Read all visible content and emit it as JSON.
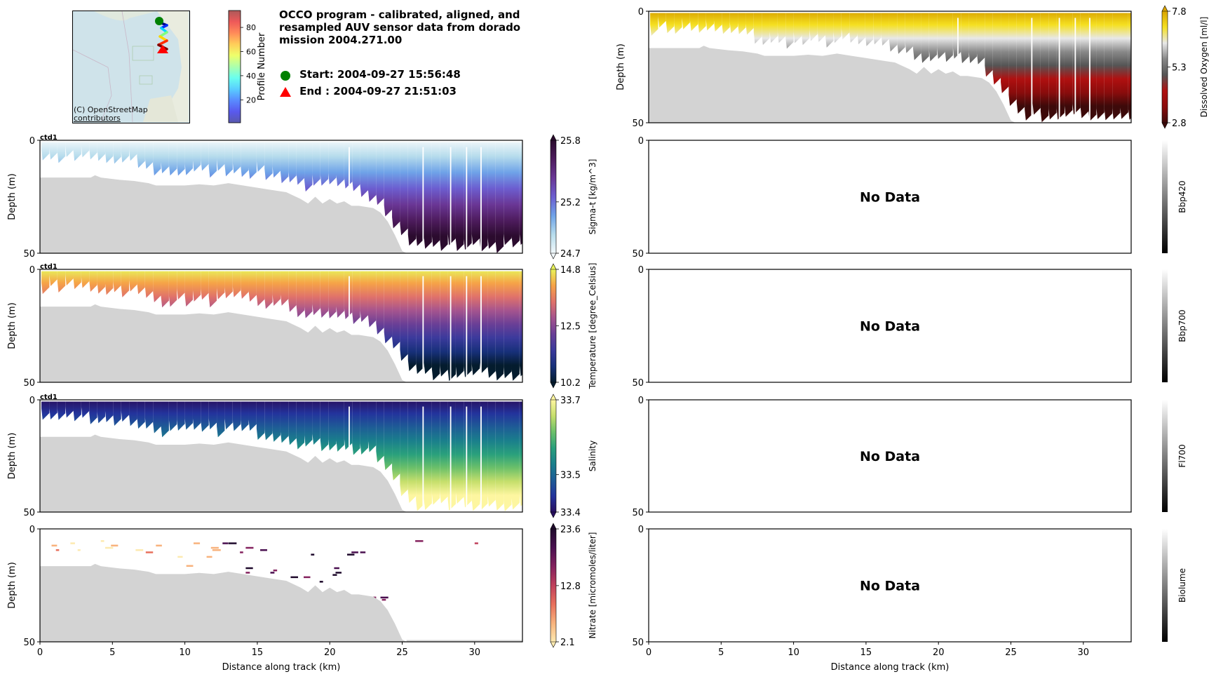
{
  "header": {
    "title_lines": [
      "OCCO program - calibrated, aligned, and",
      "resampled AUV sensor data from dorado",
      "mission 2004.271.00"
    ],
    "start_label": "Start: 2004-09-27 15:56:48",
    "end_label": "End  : 2004-09-27 21:51:03",
    "start_marker_color": "#008000",
    "end_marker_color": "#ff0000"
  },
  "map": {
    "attribution_lines": [
      "(C) OpenStreetMap",
      "contributors"
    ],
    "track_colormap": "jet",
    "profile_colorbar": {
      "label": "Profile Number",
      "range": [
        1,
        94
      ],
      "ticks": [
        "20",
        "40",
        "60",
        "80"
      ],
      "tick_values": [
        20,
        40,
        60,
        80
      ]
    }
  },
  "chart_data": [
    {
      "type": "heatmap",
      "id": "oxygen",
      "column": "right",
      "row": 0,
      "title": "",
      "xlabel": "",
      "ylabel": "Depth (m)",
      "xlim": [
        0,
        33.3
      ],
      "ylim": [
        50,
        0
      ],
      "yticks": [
        "0",
        "50"
      ],
      "xticks": [],
      "has_data": true,
      "annotation": "",
      "colorbar": {
        "label": "Dissolved Oxygen [ml/l]",
        "min": 2.8,
        "max": 7.8,
        "ticks": [
          "2.8",
          "5.3",
          "7.8"
        ],
        "extend": "both",
        "stops": [
          "#3d0a0a",
          "#8a0c0c",
          "#b01010",
          "#555555",
          "#888888",
          "#e8e8e8",
          "#f5e020",
          "#d9a400"
        ]
      }
    },
    {
      "type": "heatmap",
      "id": "sigmat",
      "column": "left",
      "row": 1,
      "title": "",
      "corner_label": "ctd1",
      "xlabel": "",
      "ylabel": "Depth (m)",
      "xlim": [
        0,
        33.3
      ],
      "ylim": [
        50,
        0
      ],
      "yticks": [
        "0",
        "50"
      ],
      "xticks": [],
      "has_data": true,
      "annotation": "",
      "colorbar": {
        "label": "Sigma-t [kg/m^3]",
        "min": 24.7,
        "max": 25.8,
        "ticks": [
          "24.7",
          "25.2",
          "25.8"
        ],
        "extend": "both",
        "stops": [
          "#f2f8fb",
          "#b6dcec",
          "#6fa3e8",
          "#6c5ed0",
          "#6a3796",
          "#4e1c5e",
          "#2b0b2e"
        ]
      }
    },
    {
      "type": "heatmap",
      "id": "temperature",
      "column": "left",
      "row": 2,
      "title": "",
      "corner_label": "ctd1",
      "xlabel": "",
      "ylabel": "Depth (m)",
      "xlim": [
        0,
        33.3
      ],
      "ylim": [
        50,
        0
      ],
      "yticks": [
        "0",
        "50"
      ],
      "xticks": [],
      "has_data": true,
      "annotation": "",
      "colorbar": {
        "label": "Temperature [degree_Celsius]",
        "min": 10.2,
        "max": 14.8,
        "ticks": [
          "10.2",
          "12.5",
          "14.8"
        ],
        "extend": "both",
        "stops": [
          "#041c2e",
          "#17307a",
          "#3b3a9c",
          "#6a3f96",
          "#a5548e",
          "#e0726a",
          "#f6a347",
          "#e8f25a"
        ]
      }
    },
    {
      "type": "heatmap",
      "id": "salinity",
      "column": "left",
      "row": 3,
      "title": "",
      "corner_label": "ctd1",
      "xlabel": "",
      "ylabel": "Depth (m)",
      "xlim": [
        0,
        33.3
      ],
      "ylim": [
        50,
        0
      ],
      "yticks": [
        "0",
        "50"
      ],
      "xticks": [],
      "has_data": true,
      "annotation": "",
      "colorbar": {
        "label": "Salinity",
        "min": 33.4,
        "max": 33.7,
        "ticks": [
          "33.4",
          "33.5",
          "33.7"
        ],
        "extend": "both",
        "stops": [
          "#281060",
          "#23339c",
          "#1e5c96",
          "#1a7f8c",
          "#2aa07c",
          "#6cc06a",
          "#c6df6c",
          "#fdf6a0"
        ]
      }
    },
    {
      "type": "heatmap",
      "id": "nitrate",
      "column": "left",
      "row": 4,
      "title": "",
      "xlabel": "Distance along track (km)",
      "ylabel": "Depth (m)",
      "xlim": [
        0,
        33.3
      ],
      "ylim": [
        50,
        0
      ],
      "yticks": [
        "0",
        "50"
      ],
      "xticks": [
        "0",
        "5",
        "10",
        "15",
        "20",
        "25",
        "30"
      ],
      "has_data": true,
      "annotation": "",
      "colorbar": {
        "label": "Nitrate [micromoles/liter]",
        "min": 2.1,
        "max": 23.6,
        "ticks": [
          "2.1",
          "12.8",
          "23.6"
        ],
        "extend": "both",
        "stops": [
          "#fdeab0",
          "#f8b27c",
          "#e8705c",
          "#c0405c",
          "#84225e",
          "#4a1050",
          "#1f0a2c"
        ]
      }
    },
    {
      "type": "heatmap",
      "id": "bbp420",
      "column": "right",
      "row": 1,
      "xlabel": "",
      "ylabel": "",
      "xlim": [
        0,
        33.3
      ],
      "ylim": [
        50,
        0
      ],
      "yticks": [
        "0",
        "50"
      ],
      "xticks": [],
      "has_data": false,
      "annotation": "No Data",
      "colorbar": {
        "label": "Bbp420",
        "ticks": [],
        "extend": "neither",
        "stops": [
          "#000000",
          "#ffffff"
        ]
      }
    },
    {
      "type": "heatmap",
      "id": "bbp700",
      "column": "right",
      "row": 2,
      "xlabel": "",
      "ylabel": "",
      "xlim": [
        0,
        33.3
      ],
      "ylim": [
        50,
        0
      ],
      "yticks": [
        "0",
        "50"
      ],
      "xticks": [],
      "has_data": false,
      "annotation": "No Data",
      "colorbar": {
        "label": "Bbp700",
        "ticks": [],
        "extend": "neither",
        "stops": [
          "#000000",
          "#ffffff"
        ]
      }
    },
    {
      "type": "heatmap",
      "id": "fl700",
      "column": "right",
      "row": 3,
      "xlabel": "",
      "ylabel": "",
      "xlim": [
        0,
        33.3
      ],
      "ylim": [
        50,
        0
      ],
      "yticks": [
        "0",
        "50"
      ],
      "xticks": [],
      "has_data": false,
      "annotation": "No Data",
      "colorbar": {
        "label": "Fl700",
        "ticks": [],
        "extend": "neither",
        "stops": [
          "#000000",
          "#ffffff"
        ]
      }
    },
    {
      "type": "heatmap",
      "id": "biolume",
      "column": "right",
      "row": 4,
      "xlabel": "Distance along track (km)",
      "ylabel": "",
      "xlim": [
        0,
        33.3
      ],
      "ylim": [
        50,
        0
      ],
      "yticks": [
        "0",
        "50"
      ],
      "xticks": [
        "0",
        "5",
        "10",
        "15",
        "20",
        "25",
        "30"
      ],
      "has_data": false,
      "annotation": "No Data",
      "colorbar": {
        "label": "Biolume",
        "ticks": [],
        "extend": "neither",
        "stops": [
          "#000000",
          "#ffffff"
        ]
      }
    }
  ],
  "bathymetry": {
    "fill_color": "#d3d3d3",
    "distance_km": [
      0,
      3.5,
      3.8,
      4.2,
      5.5,
      6.5,
      7.5,
      8,
      10,
      11,
      12,
      13,
      13.5,
      14,
      15,
      16,
      17,
      18,
      18.5,
      19,
      19.5,
      20,
      20.5,
      21,
      21.5,
      22,
      23,
      23.5,
      24,
      24.5,
      25,
      25.3,
      33.3
    ],
    "depth_m": [
      16.5,
      16.5,
      15.5,
      16.5,
      17.5,
      18,
      19,
      20,
      20,
      19.5,
      20,
      19,
      19.5,
      20,
      21,
      22,
      23,
      26,
      28,
      25,
      28,
      26,
      28,
      27,
      29,
      29,
      30,
      32,
      36,
      42,
      49,
      50,
      50
    ]
  },
  "data_floor": {
    "distance_km": [
      0,
      3.5,
      4.2,
      6.5,
      7,
      8,
      10,
      12,
      13,
      14,
      15,
      16,
      17,
      18,
      19,
      20,
      21,
      22,
      23,
      24,
      25,
      26,
      33.3
    ],
    "depth_m": [
      11,
      11,
      12,
      13,
      15,
      17,
      17,
      17,
      16,
      17,
      18,
      19,
      20,
      23,
      24,
      23,
      25,
      26,
      28,
      36,
      46,
      50,
      50
    ]
  }
}
